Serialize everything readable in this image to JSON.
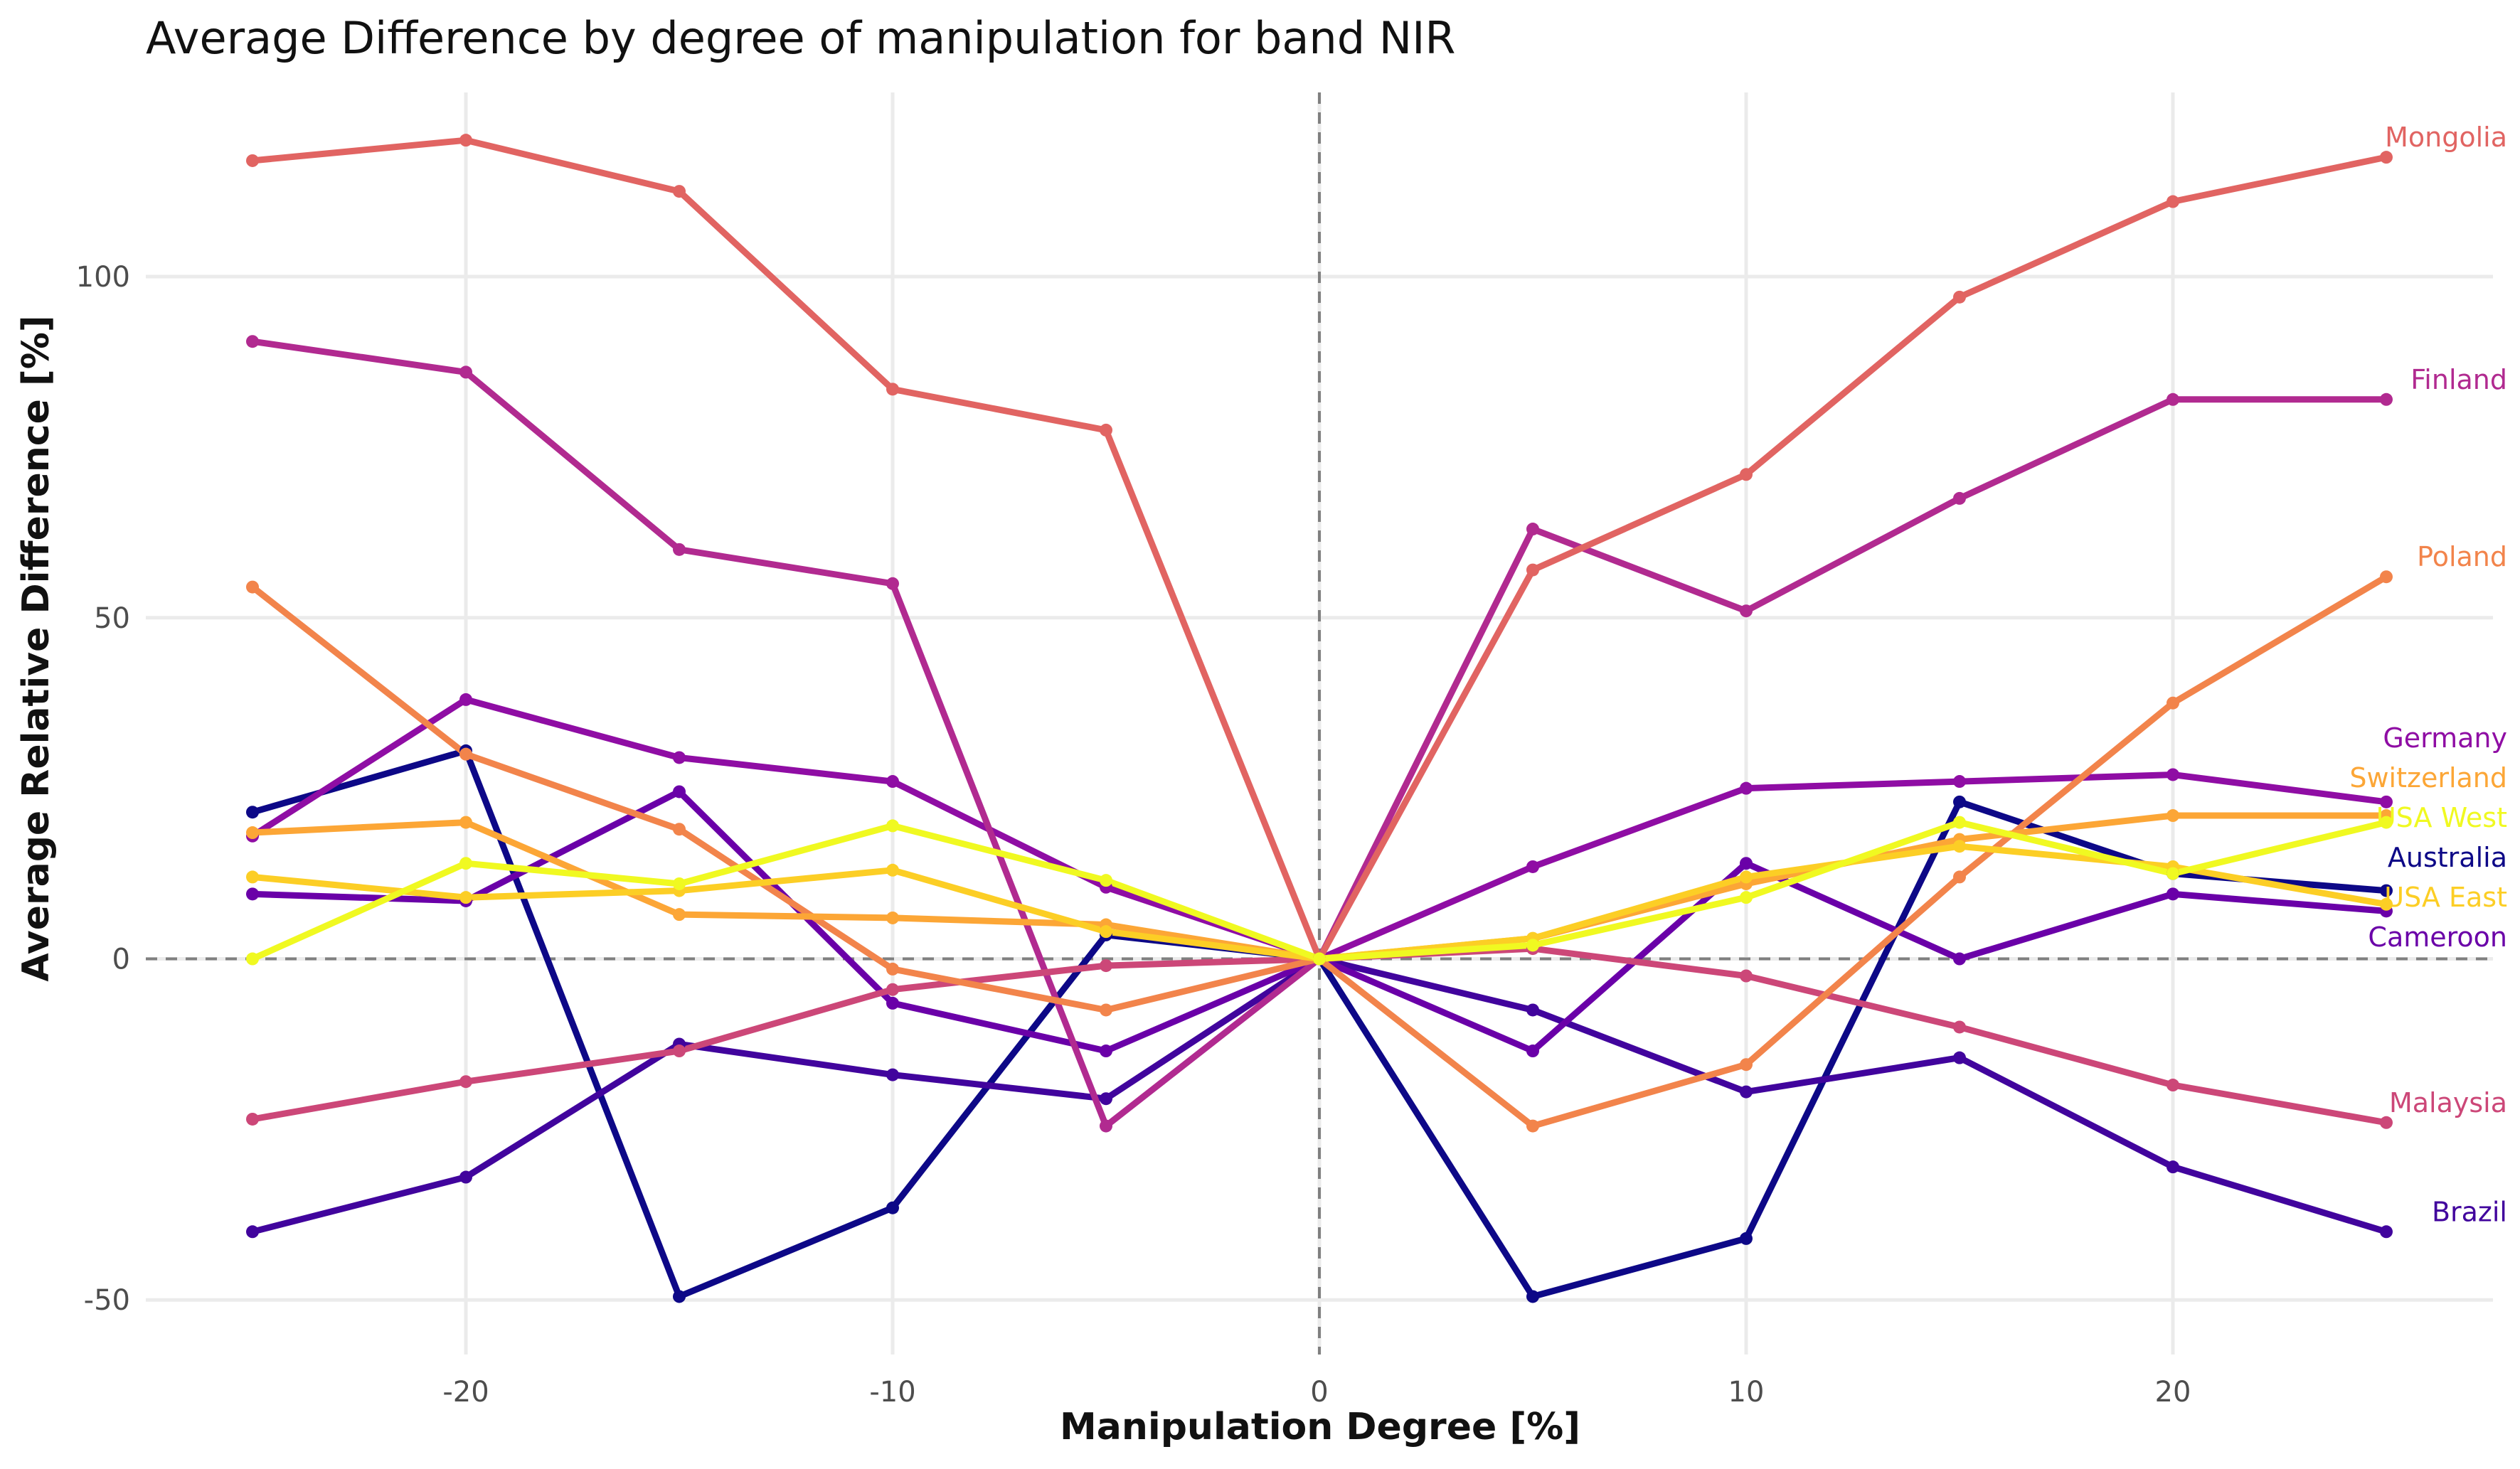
{
  "chart_data": {
    "type": "line",
    "title": "Average Difference by degree of manipulation for band NIR",
    "xlabel": "Manipulation Degree [%]",
    "ylabel": "Average Relative Difference [%]",
    "xlim": [
      -27.5,
      27.5
    ],
    "ylim": [
      -58,
      127
    ],
    "xticks": [
      -20,
      -10,
      0,
      10,
      20
    ],
    "yticks": [
      -50,
      0,
      50,
      100
    ],
    "reference_lines": [
      {
        "axis": "x",
        "value": 0
      },
      {
        "axis": "y",
        "value": 0
      }
    ],
    "grid": true,
    "legend": "direct labels at line ends (right)",
    "x": [
      -25,
      -20,
      -15,
      -10,
      -5,
      0,
      5,
      10,
      15,
      20,
      25
    ],
    "series": [
      {
        "name": "Australia",
        "color": "#0d0887",
        "values": [
          21.5,
          30.5,
          -49.5,
          -36.5,
          3.5,
          0,
          -49.5,
          -41,
          23,
          12.5,
          10
        ]
      },
      {
        "name": "Brazil",
        "color": "#41049d",
        "values": [
          -40,
          -32,
          -12.5,
          -17,
          -20.5,
          0,
          -7.5,
          -19.5,
          -14.5,
          -30.5,
          -40
        ]
      },
      {
        "name": "Cameroon",
        "color": "#6a00a8",
        "values": [
          9.5,
          8.5,
          24.5,
          -6.5,
          -13.5,
          0,
          -13.5,
          14,
          0,
          9.5,
          7
        ]
      },
      {
        "name": "Germany",
        "color": "#8f0da4",
        "values": [
          18,
          38,
          29.5,
          26,
          10.5,
          0,
          13.5,
          25,
          26,
          27,
          23
        ]
      },
      {
        "name": "Finland",
        "color": "#b12a90",
        "values": [
          90.5,
          86,
          60,
          55,
          -24.5,
          0,
          63,
          51,
          67.5,
          82,
          82
        ]
      },
      {
        "name": "Malaysia",
        "color": "#cc4778",
        "values": [
          -23.5,
          -18,
          -13.5,
          -4.5,
          -1,
          0,
          1.5,
          -2.5,
          -10,
          -18.5,
          -24
        ]
      },
      {
        "name": "Mongolia",
        "color": "#e16462",
        "values": [
          117,
          120,
          112.5,
          83.5,
          77.5,
          0,
          57,
          71,
          97,
          111,
          117.5
        ]
      },
      {
        "name": "Poland",
        "color": "#f2844b",
        "values": [
          54.5,
          30,
          19,
          -1.5,
          -7.5,
          0,
          -24.5,
          -15.5,
          12,
          37.5,
          56
        ]
      },
      {
        "name": "Switzerland",
        "color": "#fca636",
        "values": [
          18.5,
          20,
          6.5,
          6,
          5,
          0,
          3,
          11,
          17.5,
          21,
          21
        ]
      },
      {
        "name": "USA East",
        "color": "#fcce25",
        "values": [
          12,
          9,
          10,
          13,
          4,
          0,
          3,
          12,
          16.5,
          13.5,
          8
        ]
      },
      {
        "name": "USA West",
        "color": "#f0f921",
        "values": [
          0,
          14,
          11,
          19.5,
          11.5,
          0,
          2,
          9,
          20,
          12.5,
          20
        ]
      }
    ]
  }
}
